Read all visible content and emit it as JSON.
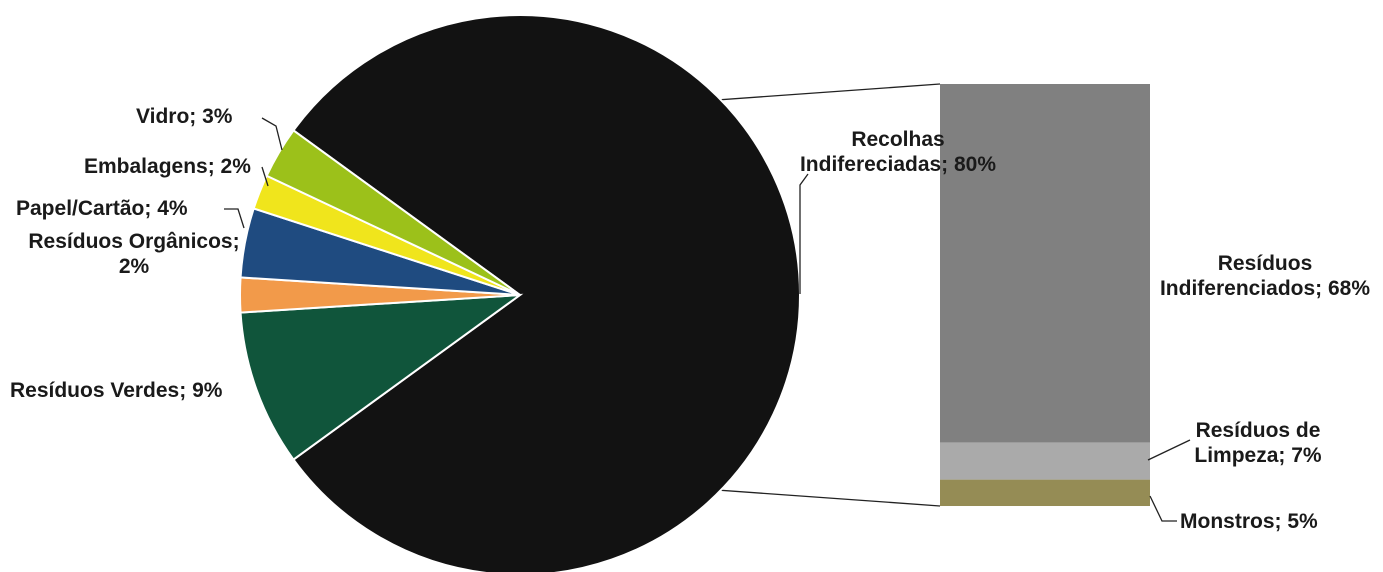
{
  "chart_data": {
    "type": "pie",
    "title": "",
    "pie": {
      "slices": [
        {
          "key": "recolhas",
          "label": [
            "Recolhas",
            "Indifereciadas; 80%"
          ],
          "value": 80,
          "color": "#121212"
        },
        {
          "key": "verdes",
          "label": [
            "Resíduos Verdes; 9%"
          ],
          "value": 9,
          "color": "#10553b"
        },
        {
          "key": "organicos",
          "label": [
            "Resíduos Orgânicos;",
            "2%"
          ],
          "value": 2,
          "color": "#f29a4a"
        },
        {
          "key": "papel",
          "label": [
            "Papel/Cartão; 4%"
          ],
          "value": 4,
          "color": "#1f4b80"
        },
        {
          "key": "embalagens",
          "label": [
            "Embalagens; 2%"
          ],
          "value": 2,
          "color": "#f0e51c"
        },
        {
          "key": "vidro",
          "label": [
            "Vidro; 3%"
          ],
          "value": 3,
          "color": "#9cc11a"
        }
      ]
    },
    "bar": {
      "parent": "recolhas",
      "segments": [
        {
          "key": "indiferenciados",
          "label": [
            "Resíduos",
            "Indiferenciados; 68%"
          ],
          "value": 68,
          "color": "#808080"
        },
        {
          "key": "limpeza",
          "label": [
            "Resíduos de",
            "Limpeza; 7%"
          ],
          "value": 7,
          "color": "#aaaaaa"
        },
        {
          "key": "monstros",
          "label": [
            "Monstros; 5%"
          ],
          "value": 5,
          "color": "#958c55"
        }
      ]
    }
  }
}
